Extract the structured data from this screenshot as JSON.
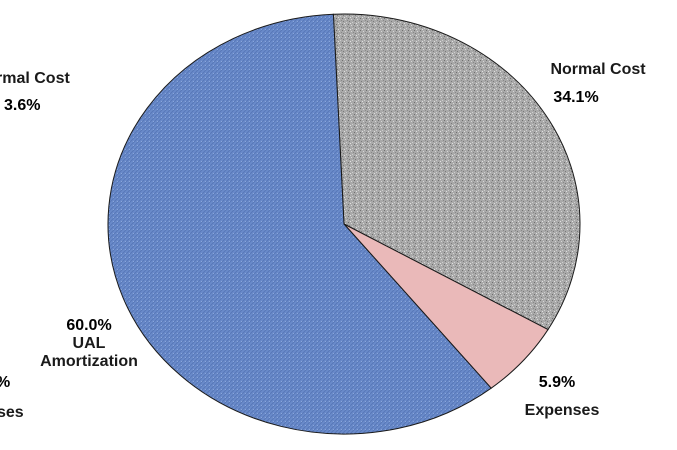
{
  "chart_data": [
    {
      "type": "pie",
      "title": "",
      "partial": true,
      "slices": [
        {
          "label": "Normal Cost",
          "value_label": "3.6%",
          "color": "#a6a6a6"
        },
        {
          "label": "Expenses",
          "value_label": "",
          "color": "#e9b8b8"
        }
      ],
      "visible_labels": [
        "rmal Cost",
        "3.6%",
        "%",
        "ses"
      ]
    },
    {
      "type": "pie",
      "title": "",
      "slices": [
        {
          "label": "Normal Cost",
          "value": 34.1,
          "value_label": "34.1%",
          "color": "#a6a6a6",
          "texture": "stone"
        },
        {
          "label": "Expenses",
          "value": 5.9,
          "value_label": "5.9%",
          "color": "#eab9b9",
          "texture": "none"
        },
        {
          "label": "UAL Amortization",
          "value": 60.0,
          "value_label": "60.0%",
          "color": "#6688c8",
          "texture": "denim"
        }
      ]
    }
  ],
  "labels": {
    "left_normal_cost": "rmal Cost",
    "left_normal_cost_pct": "3.6%",
    "left_expenses_pct": "%",
    "left_expenses": "ses",
    "normal_cost": "Normal Cost",
    "normal_cost_pct": "34.1%",
    "expenses_pct": "5.9%",
    "expenses": "Expenses",
    "ual_pct": "60.0%",
    "ual_line1": "UAL",
    "ual_line2": "Amortization"
  }
}
